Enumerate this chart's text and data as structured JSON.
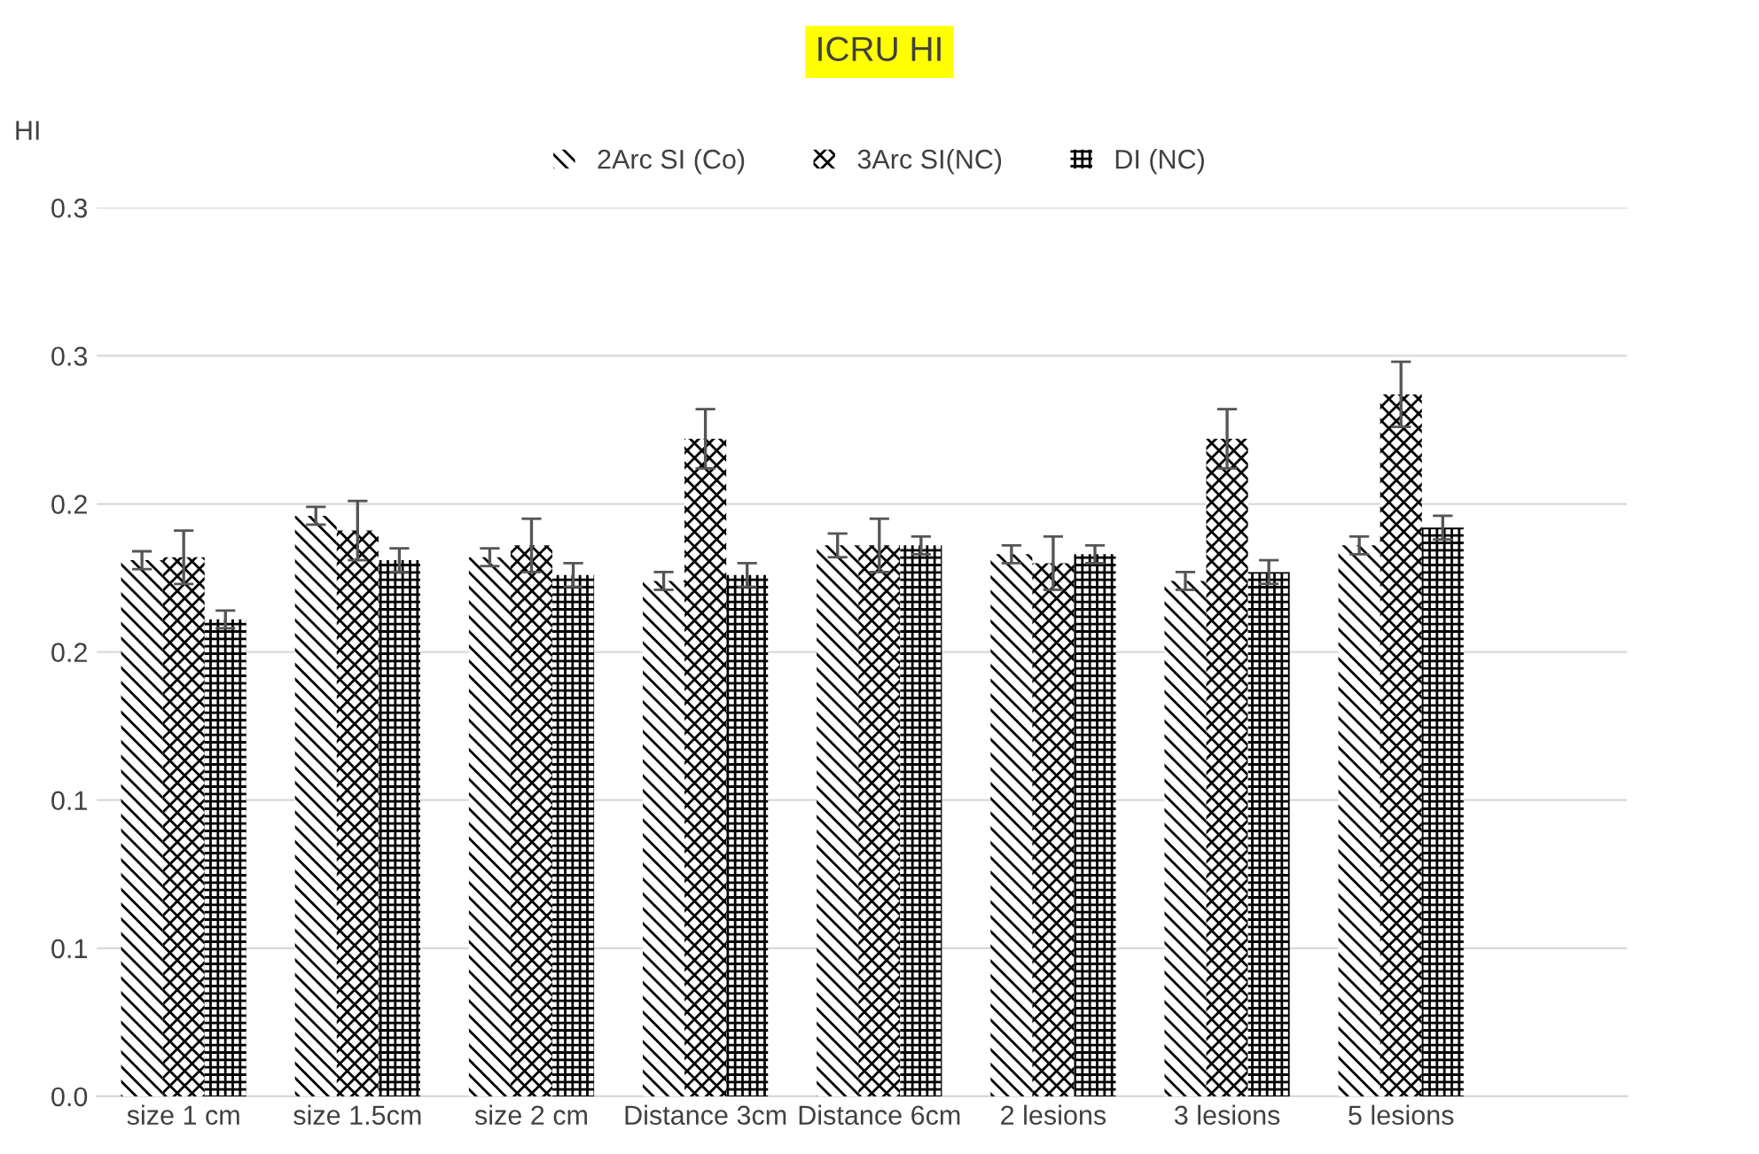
{
  "chart_data": {
    "type": "bar",
    "title": "ICRU HI",
    "ylabel": "HI",
    "categories": [
      "size 1 cm",
      "size 1.5cm",
      "size 2 cm",
      "Distance 3cm",
      "Distance 6cm",
      "2 lesions",
      "3 lesions",
      "5 lesions"
    ],
    "series": [
      {
        "name": "2Arc SI (Co)",
        "color": "#000000",
        "values": [
          0.181,
          0.196,
          0.182,
          0.174,
          0.186,
          0.183,
          0.174,
          0.186
        ],
        "errors": [
          0.003,
          0.003,
          0.003,
          0.003,
          0.004,
          0.003,
          0.003,
          0.003
        ]
      },
      {
        "name": "3Arc SI(NC)",
        "color": "#000000",
        "values": [
          0.182,
          0.191,
          0.186,
          0.222,
          0.186,
          0.18,
          0.222,
          0.237
        ],
        "errors": [
          0.009,
          0.01,
          0.009,
          0.01,
          0.009,
          0.009,
          0.01,
          0.011
        ]
      },
      {
        "name": "DI (NC)",
        "color": "#000000",
        "values": [
          0.161,
          0.181,
          0.176,
          0.176,
          0.186,
          0.183,
          0.177,
          0.192
        ],
        "errors": [
          0.003,
          0.004,
          0.004,
          0.004,
          0.003,
          0.003,
          0.004,
          0.004
        ]
      }
    ],
    "ylim": [
      0,
      0.3
    ],
    "yticks": [
      {
        "value": 0,
        "label": "0.0"
      },
      {
        "value": 0.05,
        "label": "0.1"
      },
      {
        "value": 0.1,
        "label": "0.1"
      },
      {
        "value": 0.15,
        "label": "0.2"
      },
      {
        "value": 0.2,
        "label": "0.2"
      },
      {
        "value": 0.25,
        "label": "0.3"
      },
      {
        "value": 0.3,
        "label": "0.3"
      }
    ],
    "grid": "y",
    "legend": "top"
  }
}
